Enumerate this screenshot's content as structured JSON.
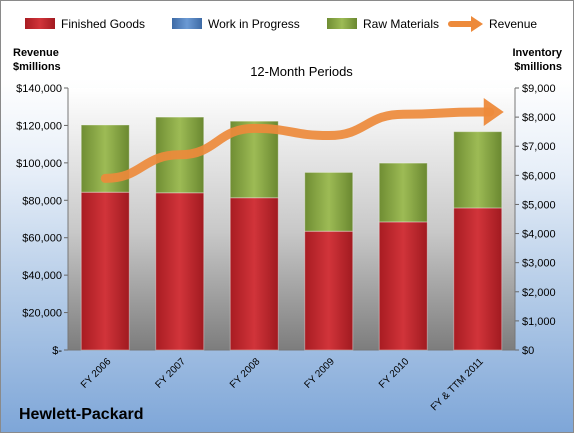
{
  "chart_data": {
    "type": "bar",
    "title": "12-Month Periods",
    "company": "Hewlett-Packard",
    "left_axis_label": [
      "Revenue",
      "$millions"
    ],
    "right_axis_label": [
      "Inventory",
      "$millions"
    ],
    "categories": [
      "FY 2006",
      "FY 2007",
      "FY 2008",
      "FY 2009",
      "FY 2010",
      "FY & TTM 2011"
    ],
    "left_ticks": [
      "$-",
      "$20,000",
      "$40,000",
      "$60,000",
      "$80,000",
      "$100,000",
      "$120,000",
      "$140,000"
    ],
    "right_ticks": [
      "$0",
      "$1,000",
      "$2,000",
      "$3,000",
      "$4,000",
      "$5,000",
      "$6,000",
      "$7,000",
      "$8,000",
      "$9,000"
    ],
    "left_ylim": [
      0,
      140000
    ],
    "right_ylim": [
      0,
      9000
    ],
    "legend_position": "top",
    "series": [
      {
        "name": "Finished Goods",
        "axis": "right",
        "stacked": true,
        "color": "#c0282d",
        "values": [
          5420,
          5400,
          5230,
          4080,
          4400,
          4880
        ]
      },
      {
        "name": "Work in Progress",
        "axis": "right",
        "stacked": true,
        "color": "#4f81bd",
        "values": [
          0,
          0,
          0,
          0,
          0,
          0
        ]
      },
      {
        "name": "Raw Materials",
        "axis": "right",
        "stacked": true,
        "color": "#8fac48",
        "values": [
          2310,
          2600,
          2630,
          2020,
          2020,
          2620
        ]
      },
      {
        "name": "Revenue",
        "axis": "left",
        "type": "line",
        "color": "#ed8a3b",
        "values": [
          91700,
          104300,
          118400,
          114600,
          126000,
          127200
        ]
      }
    ]
  }
}
